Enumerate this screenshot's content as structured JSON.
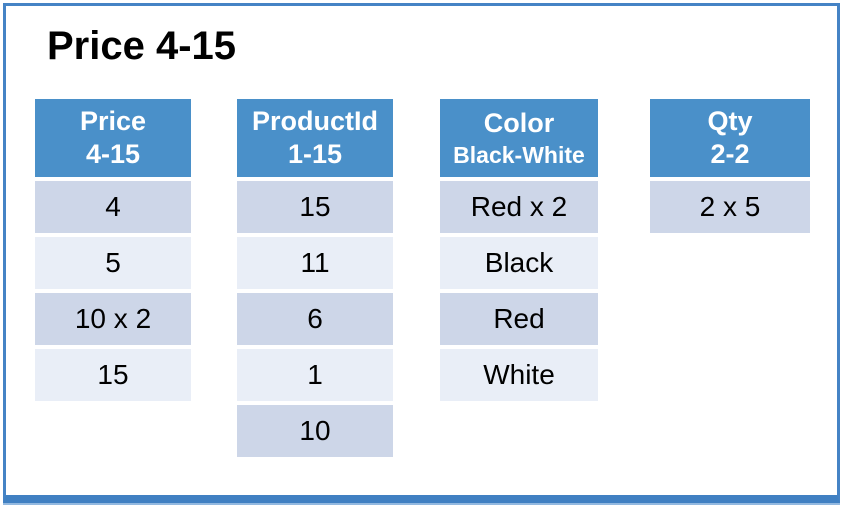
{
  "slide": {
    "title": "Price 4-15"
  },
  "colors": {
    "header_bg": "#4A90C9",
    "row_dark": "#CDD6E8",
    "row_light": "#E9EEF7",
    "frame_border": "#4583C5",
    "frame_bottom_bar": "#4080C2",
    "header_text": "#FFFFFF",
    "body_text": "#000000"
  },
  "tables": [
    {
      "name": "Price",
      "header_line1": "Price",
      "header_line2": "4-15",
      "rows": [
        "4",
        "5",
        "10 x 2",
        "15"
      ]
    },
    {
      "name": "ProductId",
      "header_line1": "ProductId",
      "header_line2": "1-15",
      "rows": [
        "15",
        "11",
        "6",
        "1",
        "10"
      ]
    },
    {
      "name": "Color",
      "header_line1": "Color",
      "header_line2": "Black-White",
      "rows": [
        "Red x 2",
        "Black",
        "Red",
        "White"
      ]
    },
    {
      "name": "Qty",
      "header_line1": "Qty",
      "header_line2": "2-2",
      "rows": [
        "2 x 5"
      ]
    }
  ]
}
